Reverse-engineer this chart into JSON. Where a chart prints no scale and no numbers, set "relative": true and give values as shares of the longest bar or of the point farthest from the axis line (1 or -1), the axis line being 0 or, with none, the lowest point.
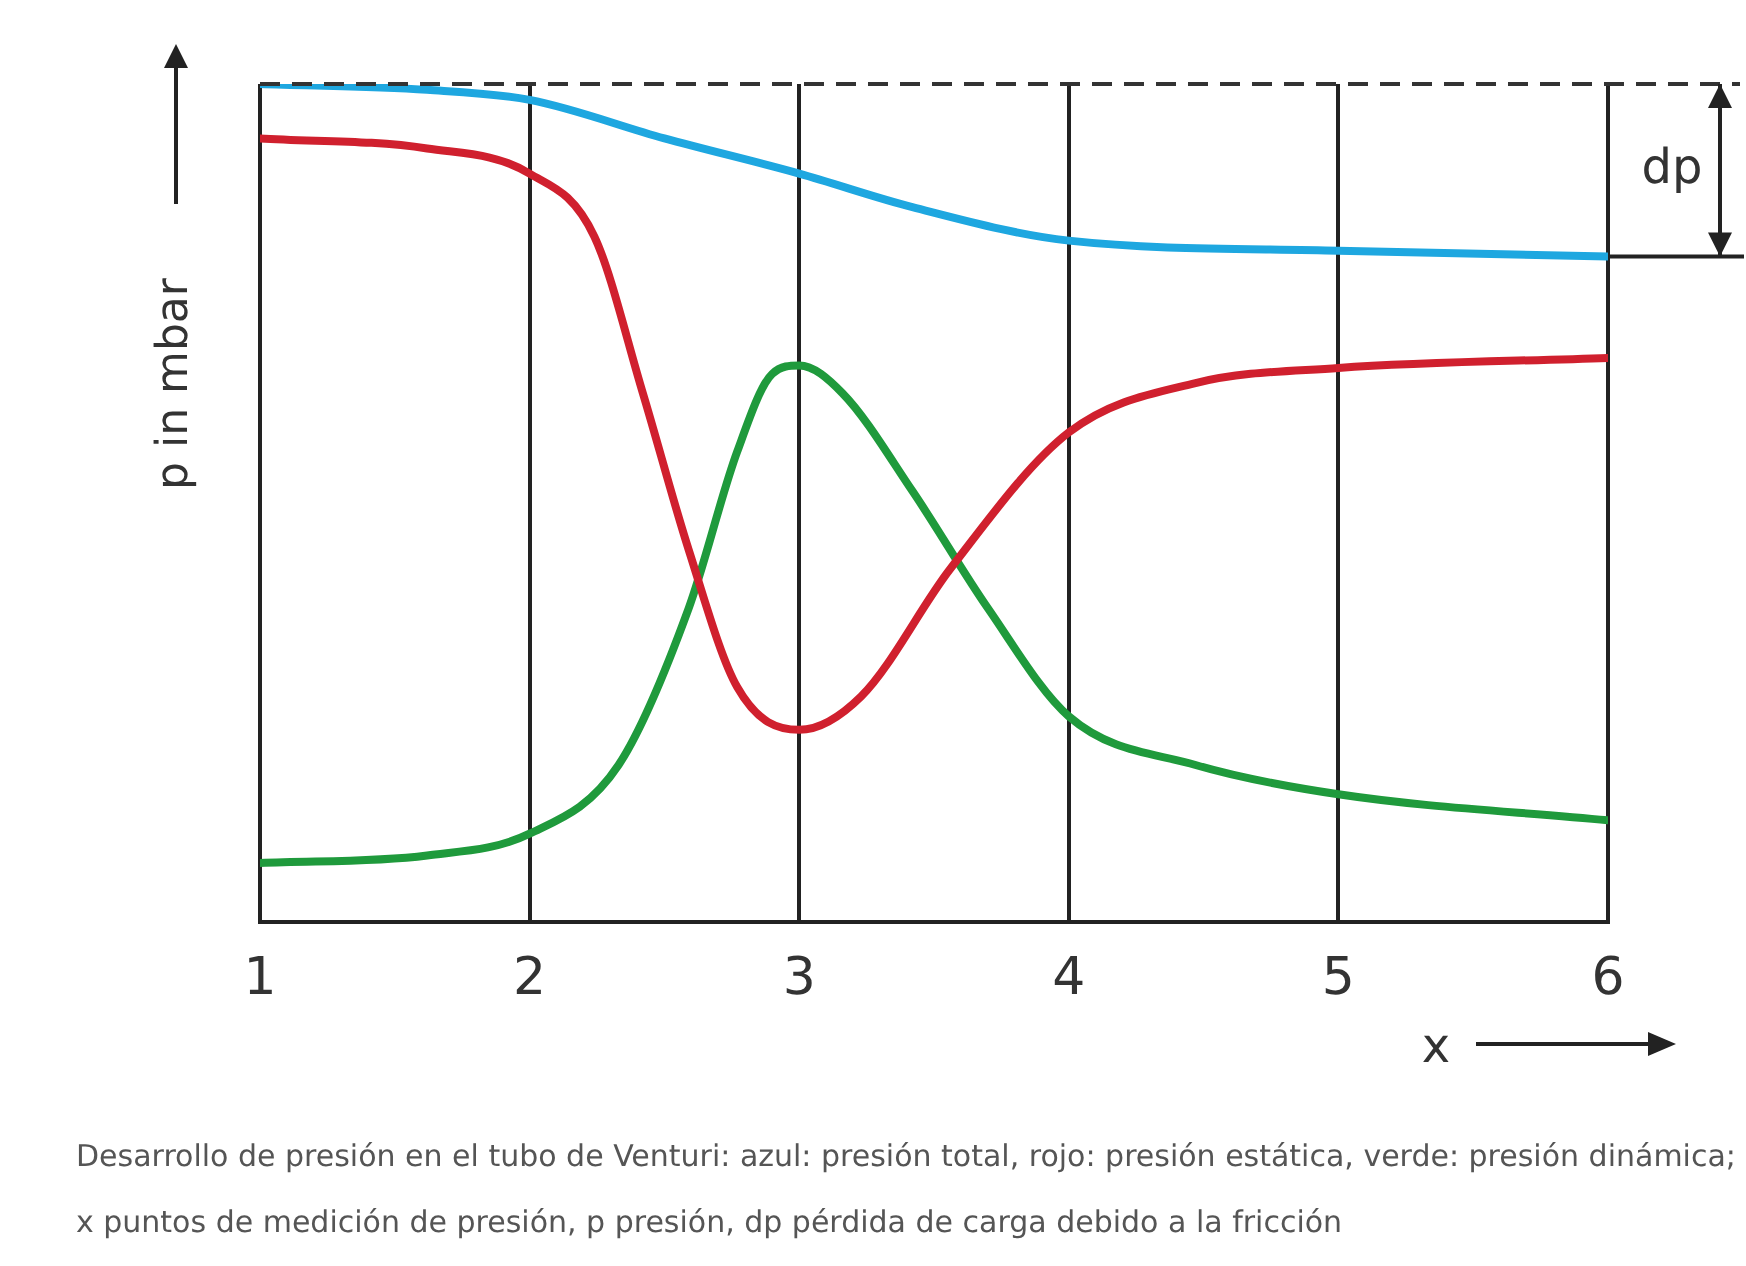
{
  "chart_data": {
    "type": "line",
    "relative": true,
    "xlabel": "x",
    "ylabel": "p in mbar",
    "xlim": [
      1,
      6
    ],
    "xticks": [
      1,
      2,
      3,
      4,
      5,
      6
    ],
    "grid": "x",
    "legend": false,
    "marker": "none",
    "line_style": "solid",
    "series": [
      {
        "color": "#1ea7e0",
        "x": [
          1,
          1.62,
          2,
          2.5,
          3,
          3.42,
          4,
          5,
          6
        ],
        "values": [
          1.0,
          0.993,
          0.981,
          0.935,
          0.893,
          0.853,
          0.813,
          0.801,
          0.794
        ]
      },
      {
        "color": "#d0202e",
        "x": [
          1,
          1.62,
          2,
          2.24,
          2.42,
          2.59,
          2.77,
          3,
          3.23,
          3.56,
          4,
          4.47,
          5,
          6
        ],
        "values": [
          0.935,
          0.923,
          0.893,
          0.818,
          0.631,
          0.444,
          0.28,
          0.229,
          0.269,
          0.421,
          0.584,
          0.643,
          0.661,
          0.673
        ]
      },
      {
        "color": "#1f9a3c",
        "x": [
          1,
          1.62,
          2,
          2.33,
          2.59,
          2.77,
          2.9,
          3,
          3.16,
          3.42,
          3.7,
          4,
          4.47,
          5,
          6
        ],
        "values": [
          0.07,
          0.079,
          0.105,
          0.187,
          0.374,
          0.561,
          0.654,
          0.664,
          0.631,
          0.514,
          0.374,
          0.245,
          0.187,
          0.152,
          0.121
        ]
      }
    ],
    "ref_lines": [
      {
        "axis": "y",
        "value": 1.0,
        "label": "dp",
        "line_style": "dashed",
        "color": "#333333"
      }
    ],
    "annotations": [
      "Desarrollo de presión en el tubo de Venturi: azul: presión total, rojo: presión estática, verde: presión dinámica; x puntos de medición de presión, p presión, dp pérdida de carga debido a la fricción"
    ]
  }
}
